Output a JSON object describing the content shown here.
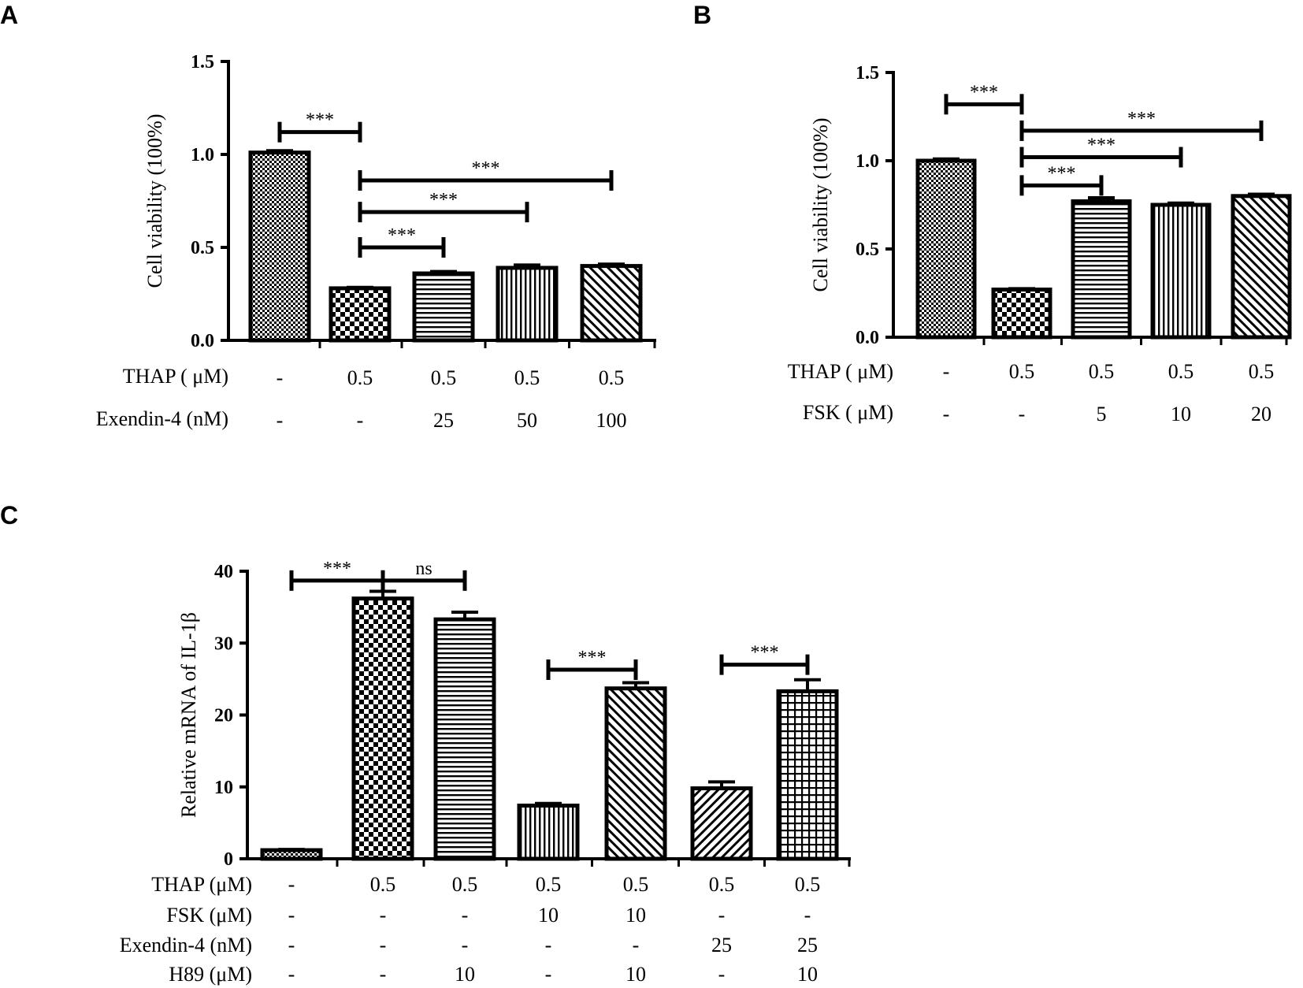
{
  "chart_data": [
    {
      "panel": "A",
      "type": "bar",
      "ylabel": "Cell viability (100%)",
      "ylim": [
        0,
        1.5
      ],
      "yticks": [
        0.0,
        0.5,
        1.0,
        1.5
      ],
      "ytick_labels": [
        "0.0",
        "0.5",
        "1.0",
        "1.5"
      ],
      "values": [
        1.01,
        0.28,
        0.36,
        0.39,
        0.4
      ],
      "errors": [
        0.01,
        0.005,
        0.01,
        0.015,
        0.01
      ],
      "patterns": [
        "dense-check",
        "check",
        "hlines",
        "vlines",
        "diag-right"
      ],
      "rows": [
        {
          "label": "THAP ( μM)",
          "cells": [
            "-",
            "0.5",
            "0.5",
            "0.5",
            "0.5"
          ]
        },
        {
          "label": "Exendin-4 (nM)",
          "cells": [
            "-",
            "-",
            "25",
            "50",
            "100"
          ]
        }
      ],
      "annotations": [
        {
          "from": 0,
          "to": 1,
          "text": "***",
          "y": 1.12
        },
        {
          "from": 1,
          "to": 4,
          "text": "***",
          "y": 0.86
        },
        {
          "from": 1,
          "to": 3,
          "text": "***",
          "y": 0.69
        },
        {
          "from": 1,
          "to": 2,
          "text": "***",
          "y": 0.5
        }
      ]
    },
    {
      "panel": "B",
      "type": "bar",
      "ylabel": "Cell viability (100%)",
      "ylim": [
        0,
        1.5
      ],
      "yticks": [
        0.0,
        0.5,
        1.0,
        1.5
      ],
      "ytick_labels": [
        "0.0",
        "0.5",
        "1.0",
        "1.5"
      ],
      "values": [
        1.0,
        0.27,
        0.77,
        0.75,
        0.8
      ],
      "errors": [
        0.01,
        0.005,
        0.02,
        0.01,
        0.01
      ],
      "patterns": [
        "dense-check",
        "check",
        "hlines",
        "vlines",
        "diag-right"
      ],
      "rows": [
        {
          "label": "THAP ( μM)",
          "cells": [
            "-",
            "0.5",
            "0.5",
            "0.5",
            "0.5"
          ]
        },
        {
          "label": "FSK ( μM)",
          "cells": [
            "-",
            "-",
            "5",
            "10",
            "20"
          ]
        }
      ],
      "annotations": [
        {
          "from": 0,
          "to": 1,
          "text": "***",
          "y": 1.32
        },
        {
          "from": 1,
          "to": 4,
          "text": "***",
          "y": 1.17
        },
        {
          "from": 1,
          "to": 3,
          "text": "***",
          "y": 1.02
        },
        {
          "from": 1,
          "to": 2,
          "text": "***",
          "y": 0.86
        }
      ]
    },
    {
      "panel": "C",
      "type": "bar",
      "ylabel": "Relative mRNA of IL-1β",
      "ylim": [
        0,
        40
      ],
      "yticks": [
        0,
        10,
        20,
        30,
        40
      ],
      "ytick_labels": [
        "0",
        "10",
        "20",
        "30",
        "40"
      ],
      "values": [
        1.2,
        36.2,
        33.3,
        7.4,
        23.7,
        9.8,
        23.3
      ],
      "errors": [
        0.1,
        1.0,
        1.0,
        0.3,
        0.8,
        0.9,
        1.6
      ],
      "patterns": [
        "dense-check",
        "check",
        "hlines",
        "vlines",
        "diag-right",
        "diag-left",
        "grid"
      ],
      "rows": [
        {
          "label": "THAP (μM)",
          "cells": [
            "-",
            "0.5",
            "0.5",
            "0.5",
            "0.5",
            "0.5",
            "0.5"
          ]
        },
        {
          "label": "FSK (μM)",
          "cells": [
            "-",
            "-",
            "-",
            "10",
            "10",
            "-",
            "-"
          ]
        },
        {
          "label": "Exendin-4 (nM)",
          "cells": [
            "-",
            "-",
            "-",
            "-",
            "-",
            "25",
            "25"
          ]
        },
        {
          "label": "H89 (μM)",
          "cells": [
            "-",
            "-",
            "10",
            "-",
            "10",
            "-",
            "10"
          ]
        }
      ],
      "annotations": [
        {
          "from": 0,
          "to": 1,
          "text": "***",
          "y": 38.7
        },
        {
          "from": 1,
          "to": 2,
          "text": "ns",
          "y": 38.7
        },
        {
          "from": 3,
          "to": 4,
          "text": "***",
          "y": 26.3
        },
        {
          "from": 5,
          "to": 6,
          "text": "***",
          "y": 27.0
        }
      ]
    }
  ]
}
